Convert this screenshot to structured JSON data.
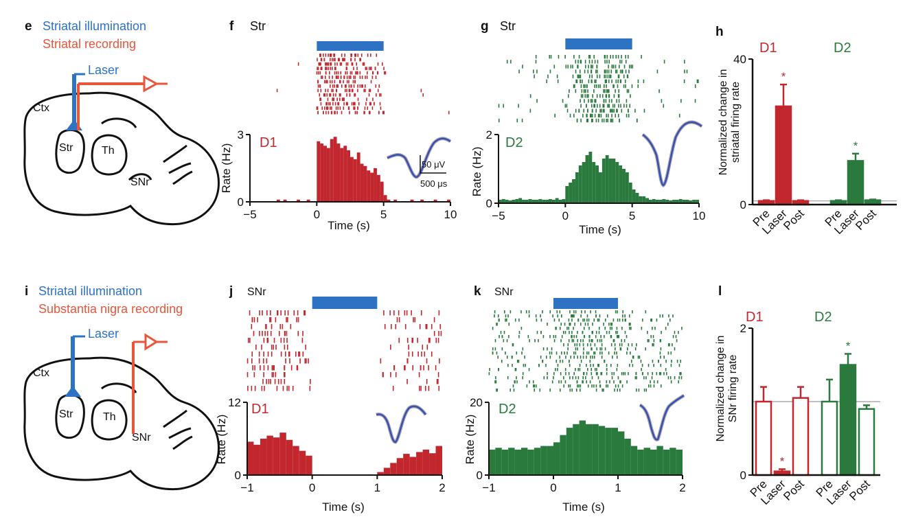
{
  "colors": {
    "d1": "#c1272d",
    "d2": "#2a7a3e",
    "blue": "#2e72c4",
    "orange": "#e8553a",
    "dark": "#111111",
    "refline": "#9a9a9a",
    "wave": "#3a4fb4"
  },
  "panels": {
    "e": {
      "letter": "e",
      "line1": "Striatal illumination",
      "line2": "Striatal recording",
      "laser": "Laser",
      "labels": {
        "ctx": "Ctx",
        "str": "Str",
        "th": "Th",
        "snr": "SNr"
      }
    },
    "i": {
      "letter": "i",
      "line1": "Striatal illumination",
      "line2": "Substantia nigra recording",
      "laser": "Laser",
      "labels": {
        "ctx": "Ctx",
        "str": "Str",
        "th": "Th",
        "snr": "SNr"
      }
    },
    "f": {
      "letter": "f",
      "title": "Str",
      "tag": "D1",
      "scalebar_v": "50 μV",
      "scalebar_t": "500 μs"
    },
    "g": {
      "letter": "g",
      "title": "Str",
      "tag": "D2"
    },
    "j": {
      "letter": "j",
      "title": "SNr",
      "tag": "D1"
    },
    "k": {
      "letter": "k",
      "title": "SNr",
      "tag": "D2"
    },
    "h": {
      "letter": "h",
      "group1": "D1",
      "group2": "D2",
      "ylabel_line1": "Normalized change in",
      "ylabel_line2": "striatal firing rate"
    },
    "l": {
      "letter": "l",
      "group1": "D1",
      "group2": "D2",
      "ylabel_line1": "Normalized change in",
      "ylabel_line2": "SNr firing rate"
    }
  },
  "chart_data": [
    {
      "id": "f",
      "type": "bar",
      "series_name": "D1",
      "color": "d1",
      "xlabel": "Time (s)",
      "ylabel": "Rate (Hz)",
      "xlim": [
        -5,
        10
      ],
      "ylim": [
        0,
        3
      ],
      "xticks": [
        "-5",
        "0",
        "5",
        "10"
      ],
      "yticks": [
        "0",
        "3"
      ],
      "laser_on": [
        0,
        5
      ],
      "bin_width": 0.25,
      "bins_x": [
        -5,
        -4.75,
        -4.5,
        -4.25,
        -4,
        -3.75,
        -3.5,
        -3.25,
        -3,
        -2.75,
        -2.5,
        -2.25,
        -2,
        -1.75,
        -1.5,
        -1.25,
        -1,
        -0.75,
        -0.5,
        -0.25,
        0,
        0.25,
        0.5,
        0.75,
        1,
        1.25,
        1.5,
        1.75,
        2,
        2.25,
        2.5,
        2.75,
        3,
        3.25,
        3.5,
        3.75,
        4,
        4.25,
        4.5,
        4.75,
        5,
        5.25,
        5.5,
        5.75,
        6,
        6.25,
        6.5,
        6.75,
        7,
        7.25,
        7.5,
        7.75,
        8,
        8.25,
        8.5,
        8.75,
        9,
        9.25,
        9.5,
        9.75
      ],
      "values": [
        0,
        0,
        0,
        0,
        0,
        0,
        0,
        0,
        0.1,
        0,
        0.1,
        0,
        0,
        0,
        0.1,
        0,
        0,
        0.1,
        0,
        0,
        2.7,
        2.6,
        2.5,
        2.4,
        2.8,
        2.9,
        2.6,
        2.4,
        2.5,
        2.3,
        2.0,
        1.9,
        2.2,
        1.7,
        1.6,
        1.4,
        1.3,
        1.5,
        1.2,
        0.9,
        0.3,
        0.1,
        0,
        0.1,
        0,
        0,
        0,
        0,
        0.1,
        0,
        0,
        0.1,
        0,
        0,
        0,
        0.1,
        0,
        0,
        0,
        0.1
      ],
      "raster_rows": 14
    },
    {
      "id": "g",
      "type": "bar",
      "series_name": "D2",
      "color": "d2",
      "xlabel": "Time (s)",
      "ylabel": "Rate (Hz)",
      "xlim": [
        -5,
        10
      ],
      "ylim": [
        0,
        2
      ],
      "xticks": [
        "-5",
        "0",
        "5",
        "10"
      ],
      "yticks": [
        "0",
        "2"
      ],
      "laser_on": [
        0,
        5
      ],
      "bin_width": 0.25,
      "bins_x": [
        -5,
        -4.75,
        -4.5,
        -4.25,
        -4,
        -3.75,
        -3.5,
        -3.25,
        -3,
        -2.75,
        -2.5,
        -2.25,
        -2,
        -1.75,
        -1.5,
        -1.25,
        -1,
        -0.75,
        -0.5,
        -0.25,
        0,
        0.25,
        0.5,
        0.75,
        1,
        1.25,
        1.5,
        1.75,
        2,
        2.25,
        2.5,
        2.75,
        3,
        3.25,
        3.5,
        3.75,
        4,
        4.25,
        4.5,
        4.75,
        5,
        5.25,
        5.5,
        5.75,
        6,
        6.25,
        6.5,
        6.75,
        7,
        7.25,
        7.5,
        7.75,
        8,
        8.25,
        8.5,
        8.75,
        9,
        9.25,
        9.5,
        9.75
      ],
      "values": [
        0.1,
        0.12,
        0.1,
        0.08,
        0.1,
        0.12,
        0.15,
        0.1,
        0.1,
        0.12,
        0.1,
        0.1,
        0.12,
        0.1,
        0.1,
        0.12,
        0.1,
        0.15,
        0.1,
        0.12,
        0.5,
        0.6,
        0.7,
        0.9,
        1.1,
        1.2,
        1.4,
        1.5,
        1.2,
        1.1,
        0.9,
        1.3,
        1.4,
        1.3,
        1.3,
        1.2,
        1.1,
        1.0,
        0.9,
        0.6,
        0.4,
        0.3,
        0.2,
        0.2,
        0.15,
        0.1,
        0.12,
        0.1,
        0.1,
        0.12,
        0.1,
        0.08,
        0.1,
        0.1,
        0.12,
        0.1,
        0.1,
        0.08,
        0.1,
        0.1
      ],
      "raster_rows": 14
    },
    {
      "id": "j",
      "type": "bar",
      "series_name": "D1",
      "color": "d1",
      "xlabel": "Time (s)",
      "ylabel": "Rate (Hz)",
      "xlim": [
        -1,
        2
      ],
      "ylim": [
        0,
        12
      ],
      "xticks": [
        "-1",
        "0",
        "1",
        "2"
      ],
      "yticks": [
        "0",
        "12"
      ],
      "laser_on": [
        0,
        1
      ],
      "bin_width": 0.1,
      "bins_x": [
        -1,
        -0.9,
        -0.8,
        -0.7,
        -0.6,
        -0.5,
        -0.4,
        -0.3,
        -0.2,
        -0.1,
        0,
        0.1,
        0.2,
        0.3,
        0.4,
        0.5,
        0.6,
        0.7,
        0.8,
        0.9,
        1,
        1.1,
        1.2,
        1.3,
        1.4,
        1.5,
        1.6,
        1.7,
        1.8,
        1.9
      ],
      "values": [
        5.5,
        5.0,
        6.0,
        6.5,
        6.2,
        7.0,
        5.8,
        4.8,
        4.0,
        3.2,
        0,
        0,
        0,
        0,
        0,
        0,
        0,
        0.1,
        0,
        0,
        0.5,
        1.2,
        2.0,
        2.8,
        3.5,
        3.0,
        3.8,
        4.2,
        3.6,
        4.8
      ],
      "raster_rows": 12
    },
    {
      "id": "k",
      "type": "bar",
      "series_name": "D2",
      "color": "d2",
      "xlabel": "Time (s)",
      "ylabel": "Rate (Hz)",
      "xlim": [
        -1,
        2
      ],
      "ylim": [
        0,
        20
      ],
      "xticks": [
        "-1",
        "0",
        "1",
        "2"
      ],
      "yticks": [
        "0",
        "20"
      ],
      "laser_on": [
        0,
        1
      ],
      "bin_width": 0.1,
      "bins_x": [
        -1,
        -0.9,
        -0.8,
        -0.7,
        -0.6,
        -0.5,
        -0.4,
        -0.3,
        -0.2,
        -0.1,
        0,
        0.1,
        0.2,
        0.3,
        0.4,
        0.5,
        0.6,
        0.7,
        0.8,
        0.9,
        1,
        1.1,
        1.2,
        1.3,
        1.4,
        1.5,
        1.6,
        1.7,
        1.8,
        1.9
      ],
      "values": [
        7,
        7.5,
        7,
        7.5,
        7,
        7.5,
        7,
        7.5,
        8,
        8,
        9,
        11,
        13,
        14,
        15,
        14,
        14,
        13.5,
        13,
        13,
        12,
        10,
        8,
        7,
        7.5,
        7,
        8,
        7,
        7.5,
        7
      ],
      "raster_rows": 20
    },
    {
      "id": "h",
      "type": "bar",
      "ylim": [
        0,
        40
      ],
      "yticks": [
        "0",
        "40"
      ],
      "baseline": 1,
      "categories": [
        "Pre",
        "Laser",
        "Post",
        "Pre",
        "Laser",
        "Post"
      ],
      "groups": [
        "D1",
        "D1",
        "D1",
        "D2",
        "D2",
        "D2"
      ],
      "values": [
        1,
        27,
        1,
        1,
        12,
        1.2
      ],
      "errors": [
        0.2,
        6,
        0.2,
        0.2,
        2,
        0.2
      ],
      "filled": [
        true,
        true,
        true,
        true,
        true,
        true
      ],
      "significant": [
        false,
        true,
        false,
        false,
        true,
        false
      ]
    },
    {
      "id": "l",
      "type": "bar",
      "ylim": [
        0,
        2
      ],
      "yticks": [
        "0",
        "2"
      ],
      "baseline": 1,
      "categories": [
        "Pre",
        "Laser",
        "Post",
        "Pre",
        "Laser",
        "Post"
      ],
      "groups": [
        "D1",
        "D1",
        "D1",
        "D2",
        "D2",
        "D2"
      ],
      "values": [
        1.0,
        0.05,
        1.05,
        1.0,
        1.5,
        0.9
      ],
      "errors": [
        0.2,
        0.03,
        0.15,
        0.3,
        0.15,
        0.05
      ],
      "filled": [
        false,
        true,
        false,
        false,
        true,
        false
      ],
      "significant": [
        false,
        true,
        false,
        false,
        true,
        false
      ]
    }
  ]
}
